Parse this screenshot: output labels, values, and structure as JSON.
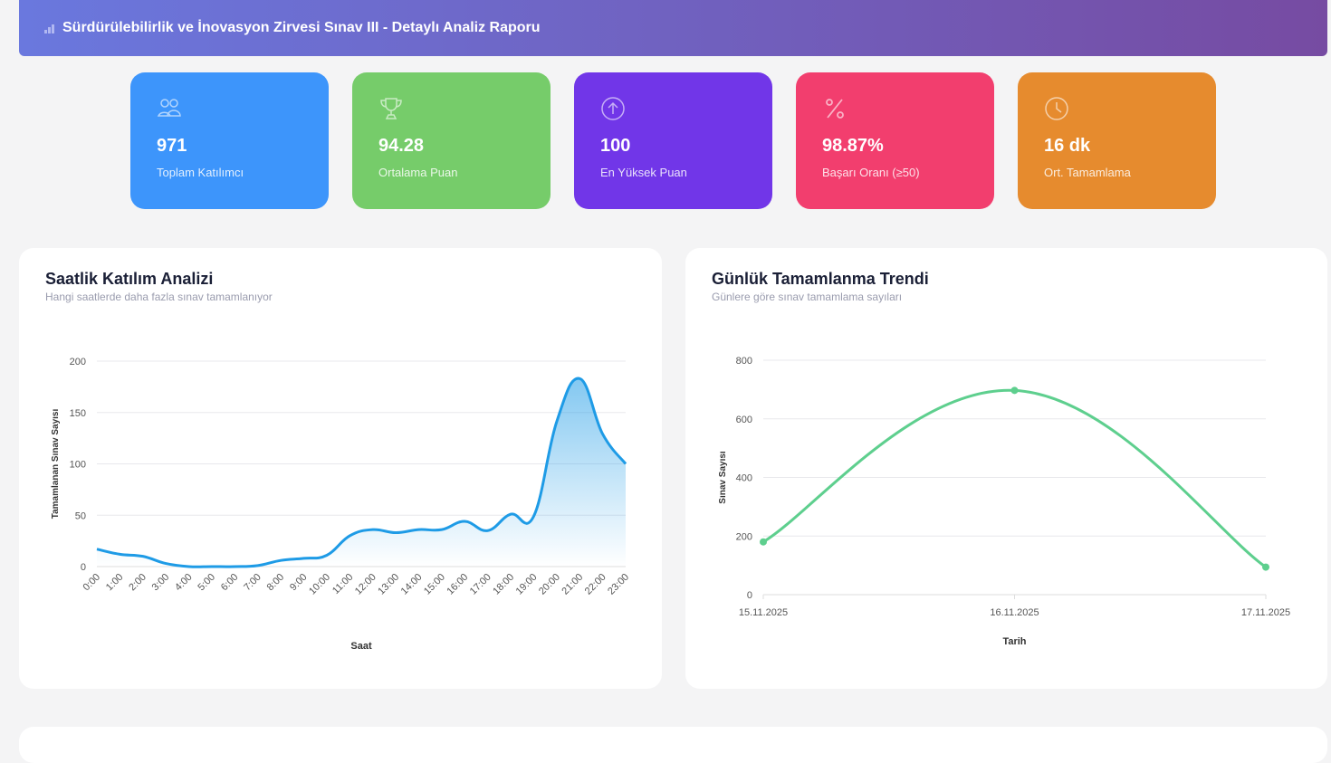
{
  "header": {
    "title": "Sürdürülebilirlik ve İnovasyon Zirvesi Sınav III - Detaylı Analiz Raporu",
    "icon": "bar-chart-icon"
  },
  "stats": [
    {
      "value": "971",
      "label": "Toplam Katılımcı",
      "icon": "users-icon",
      "color": "#3d95fb"
    },
    {
      "value": "94.28",
      "label": "Ortalama Puan",
      "icon": "trophy-icon",
      "color": "#76cc6a"
    },
    {
      "value": "100",
      "label": "En Yüksek Puan",
      "icon": "arrow-up-circle-icon",
      "color": "#7136e8"
    },
    {
      "value": "98.87%",
      "label": "Başarı Oranı (≥50)",
      "icon": "percent-icon",
      "color": "#f23e6e"
    },
    {
      "value": "16 dk",
      "label": "Ort. Tamamlama",
      "icon": "clock-icon",
      "color": "#e68b2e"
    }
  ],
  "chart_data": [
    {
      "type": "area",
      "title": "Saatlik Katılım Analizi",
      "subtitle": "Hangi saatlerde daha fazla sınav tamamlanıyor",
      "xlabel": "Saat",
      "ylabel": "Tamamlanan Sınav Sayısı",
      "categories": [
        "0:00",
        "1:00",
        "2:00",
        "3:00",
        "4:00",
        "5:00",
        "6:00",
        "7:00",
        "8:00",
        "9:00",
        "10:00",
        "11:00",
        "12:00",
        "13:00",
        "14:00",
        "15:00",
        "16:00",
        "17:00",
        "18:00",
        "19:00",
        "20:00",
        "21:00",
        "22:00",
        "23:00"
      ],
      "values": [
        17,
        12,
        10,
        3,
        0,
        0,
        0,
        1,
        6,
        8,
        11,
        30,
        36,
        33,
        36,
        36,
        44,
        35,
        51,
        49,
        141,
        183,
        129,
        100
      ],
      "ylim": [
        0,
        200
      ],
      "yticks": [
        0,
        50,
        100,
        150,
        200
      ],
      "grid": true,
      "color": "#1e9be6"
    },
    {
      "type": "line",
      "title": "Günlük Tamamlanma Trendi",
      "subtitle": "Günlere göre sınav tamamlama sayıları",
      "xlabel": "Tarih",
      "ylabel": "Sınav Sayısı",
      "categories": [
        "15.11.2025",
        "16.11.2025",
        "17.11.2025"
      ],
      "values": [
        180,
        697,
        94
      ],
      "ylim": [
        0,
        800
      ],
      "yticks": [
        0,
        200,
        400,
        600,
        800
      ],
      "grid": true,
      "color": "#5ecf8e"
    }
  ]
}
